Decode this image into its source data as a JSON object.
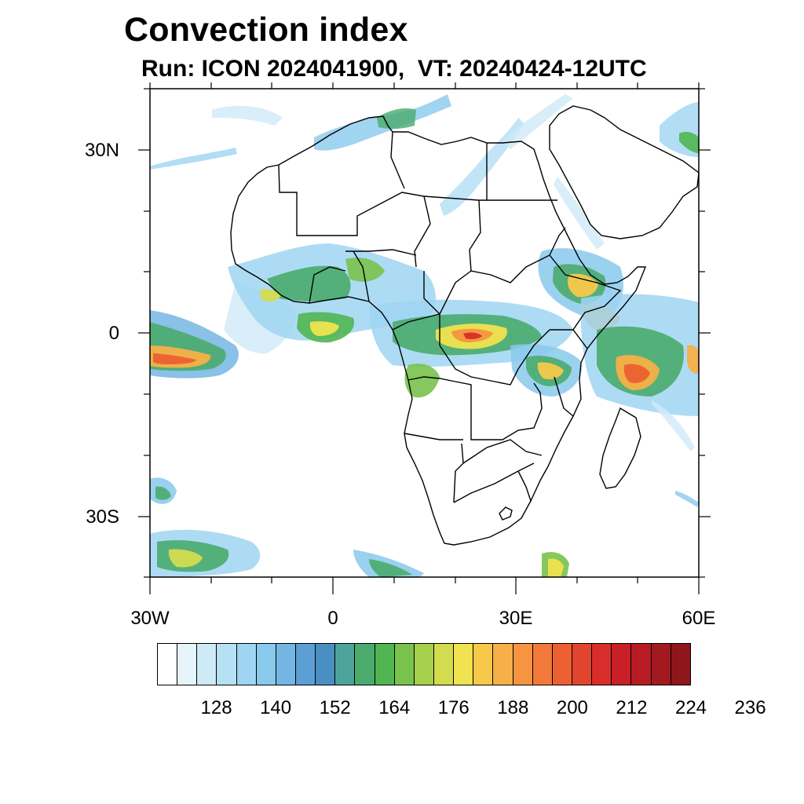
{
  "title": "Convection index",
  "subtitle": "Run: ICON 2024041900,  VT: 20240424-12UTC",
  "lat_labels": [
    "30N",
    "0",
    "30S"
  ],
  "lon_labels": [
    "30W",
    "0",
    "30E",
    "60E"
  ],
  "colorbar": {
    "labels": [
      "128",
      "140",
      "152",
      "164",
      "176",
      "188",
      "200",
      "212",
      "224",
      "236"
    ],
    "colors": [
      "#ffffff",
      "#e6f4fb",
      "#cfeaf7",
      "#b6e0f4",
      "#9fd5f2",
      "#88c9ec",
      "#74b6e3",
      "#5b9fd4",
      "#4a8fc3",
      "#4ea39a",
      "#4aab6d",
      "#4fb651",
      "#79c24c",
      "#a6cf4c",
      "#d3dc4f",
      "#f0e34f",
      "#f7c94a",
      "#f7b047",
      "#f69441",
      "#f17a3a",
      "#ec6033",
      "#e2452d",
      "#d82d2a",
      "#c92027",
      "#b71c24",
      "#a31920",
      "#8f171c"
    ]
  },
  "extent": {
    "lon": [
      -30,
      60
    ],
    "lat": [
      -40,
      40
    ]
  },
  "colors": {
    "land_border": "#000000",
    "frame": "#000000"
  }
}
